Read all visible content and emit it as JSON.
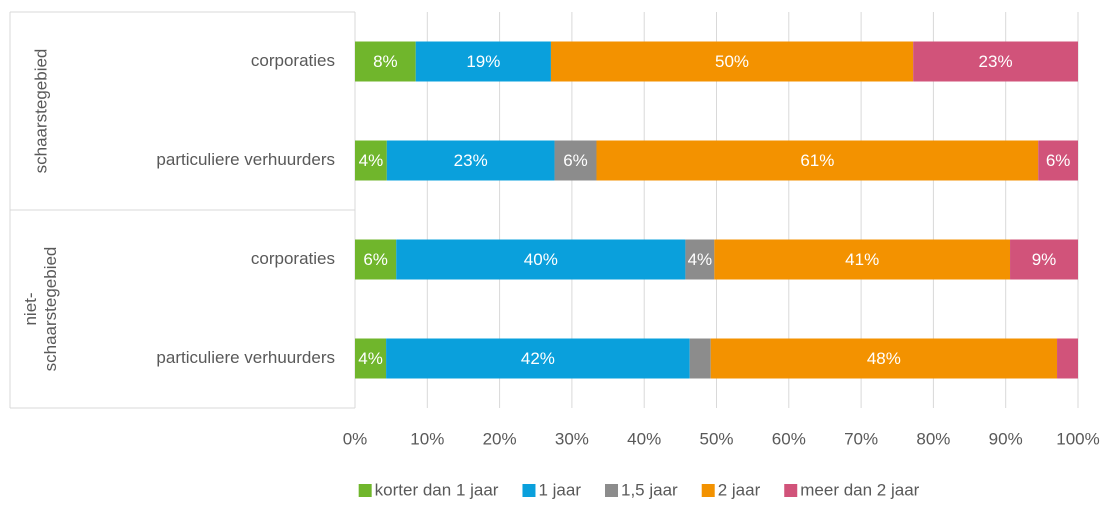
{
  "chart_data": {
    "type": "stacked_barh",
    "groups": [
      "schaarstegebied",
      "niet-schaarstegebied"
    ],
    "categories": [
      "corporaties",
      "particuliere verhuurders",
      "corporaties",
      "particuliere verhuurders"
    ],
    "series": [
      {
        "name": "korter dan 1 jaar",
        "color": "#70b62c",
        "values": [
          8.4,
          4.4,
          5.7,
          4.3
        ],
        "value_labels": [
          "8%",
          "4%",
          "6%",
          "4%"
        ]
      },
      {
        "name": "1 jaar",
        "color": "#0aa0dc",
        "values": [
          18.7,
          23.2,
          40.0,
          42.0
        ],
        "value_labels": [
          "19%",
          "23%",
          "40%",
          "42%"
        ]
      },
      {
        "name": "1,5 jaar",
        "color": "#8c8c8c",
        "values": [
          0,
          5.8,
          4.0,
          2.9
        ],
        "value_labels": [
          null,
          "6%",
          "4%",
          null
        ]
      },
      {
        "name": "2 jaar",
        "color": "#f39200",
        "values": [
          50.1,
          61.1,
          40.9,
          47.9
        ],
        "value_labels": [
          "50%",
          "61%",
          "41%",
          "48%"
        ]
      },
      {
        "name": "meer dan 2 jaar",
        "color": "#d1537a",
        "values": [
          22.8,
          5.5,
          9.4,
          2.9
        ],
        "value_labels": [
          "23%",
          "6%",
          "9%",
          null
        ]
      }
    ],
    "xlim": [
      0,
      100
    ],
    "xticks": [
      {
        "value": 0,
        "label": "0%"
      },
      {
        "value": 10,
        "label": "10%"
      },
      {
        "value": 20,
        "label": "20%"
      },
      {
        "value": 30,
        "label": "30%"
      },
      {
        "value": 40,
        "label": "40%"
      },
      {
        "value": 50,
        "label": "50%"
      },
      {
        "value": 60,
        "label": "60%"
      },
      {
        "value": 70,
        "label": "70%"
      },
      {
        "value": 80,
        "label": "80%"
      },
      {
        "value": 90,
        "label": "90%"
      },
      {
        "value": 100,
        "label": "100%"
      }
    ],
    "grid": true,
    "legend": "bottom"
  }
}
